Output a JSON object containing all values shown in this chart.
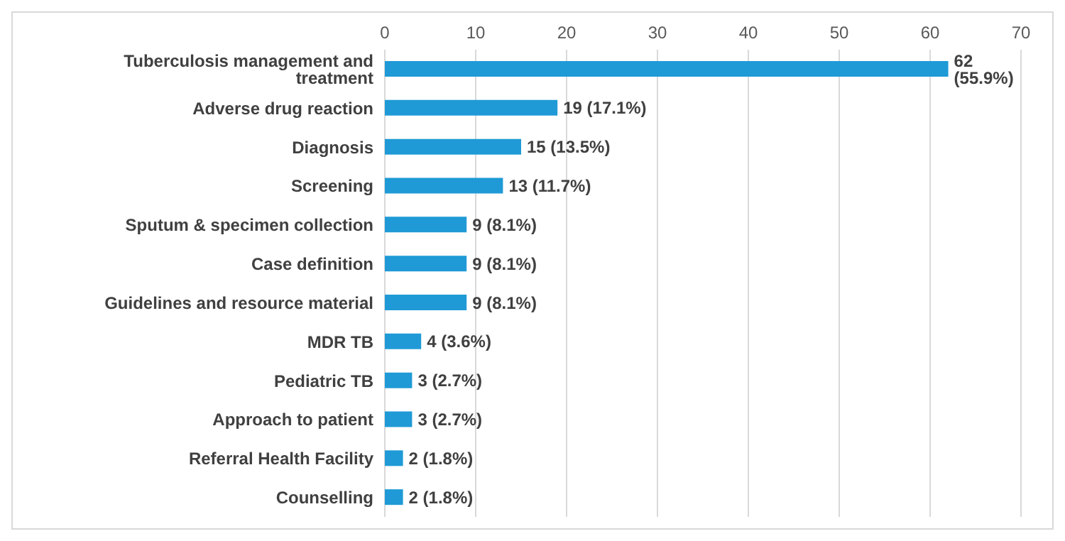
{
  "chart_data": {
    "type": "bar",
    "orientation": "horizontal",
    "categories": [
      "Tuberculosis management and treatment",
      "Adverse drug reaction",
      "Diagnosis",
      "Screening",
      "Sputum & specimen collection",
      "Case definition",
      "Guidelines and resource material",
      "MDR TB",
      "Pediatric TB",
      "Approach to patient",
      "Referral Health Facility",
      "Counselling"
    ],
    "values": [
      62,
      19,
      15,
      13,
      9,
      9,
      9,
      4,
      3,
      3,
      2,
      2
    ],
    "value_labels": [
      "62 (55.9%)",
      "19 (17.1%)",
      "15 (13.5%)",
      "13 (11.7%)",
      "9 (8.1%)",
      "9 (8.1%)",
      "9 (8.1%)",
      "4 (3.6%)",
      "3 (2.7%)",
      "3 (2.7%)",
      "2 (1.8%)",
      "2 (1.8%)"
    ],
    "color": "#1f9ad6",
    "xlim": [
      0,
      70
    ],
    "xticks": [
      0,
      10,
      20,
      30,
      40,
      50,
      60,
      70
    ],
    "grid": "x",
    "legend": false
  }
}
